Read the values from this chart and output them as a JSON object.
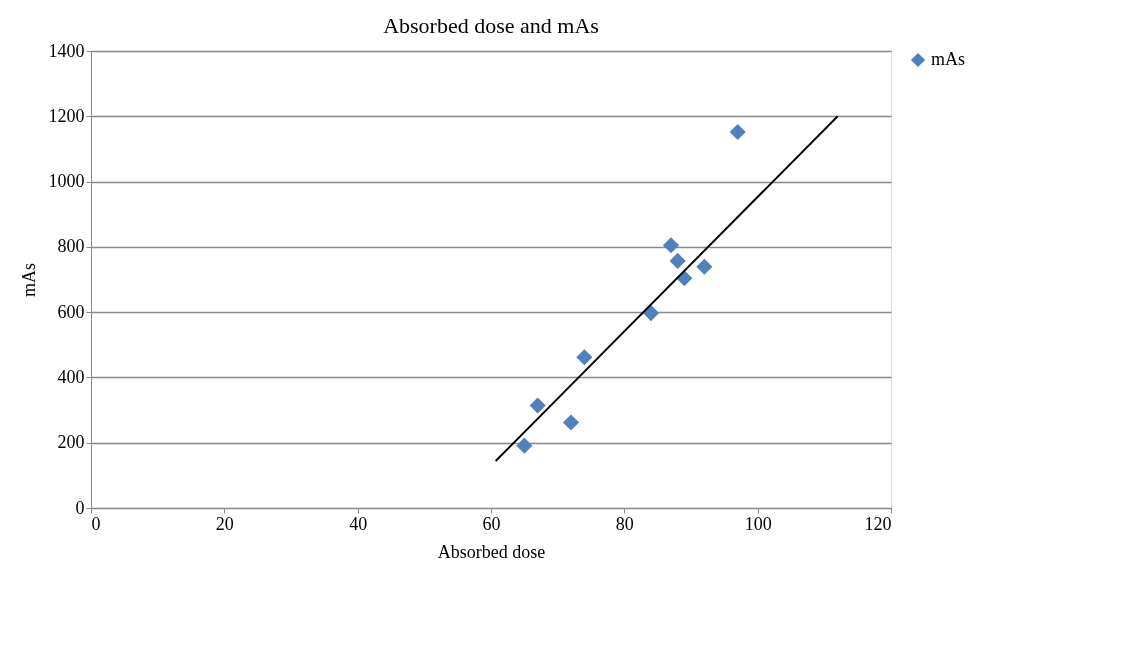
{
  "chart_data": {
    "type": "scatter",
    "title": "Absorbed dose and mAs",
    "xlabel": "Absorbed dose",
    "ylabel": "mAs",
    "xlim": [
      0,
      120
    ],
    "xticks": [
      0,
      20,
      40,
      60,
      80,
      100,
      120
    ],
    "ylim": [
      0,
      1400
    ],
    "yticks": [
      0,
      200,
      400,
      600,
      800,
      1000,
      1200,
      1400
    ],
    "grid": "y",
    "legend": "right",
    "marker": "diamond",
    "series": [
      {
        "name": "mAs",
        "color": "#4f81bd",
        "x": [
          97,
          87,
          88,
          92,
          89,
          84,
          74,
          67,
          72,
          65
        ],
        "values": [
          1152,
          805,
          757,
          739,
          704,
          597,
          462,
          314,
          262,
          191
        ]
      },
      {
        "type": "line",
        "marker": "none",
        "line_style": "solid",
        "color": "#000000",
        "x": [
          60.7,
          112
        ],
        "values": [
          144,
          1200
        ]
      }
    ]
  }
}
